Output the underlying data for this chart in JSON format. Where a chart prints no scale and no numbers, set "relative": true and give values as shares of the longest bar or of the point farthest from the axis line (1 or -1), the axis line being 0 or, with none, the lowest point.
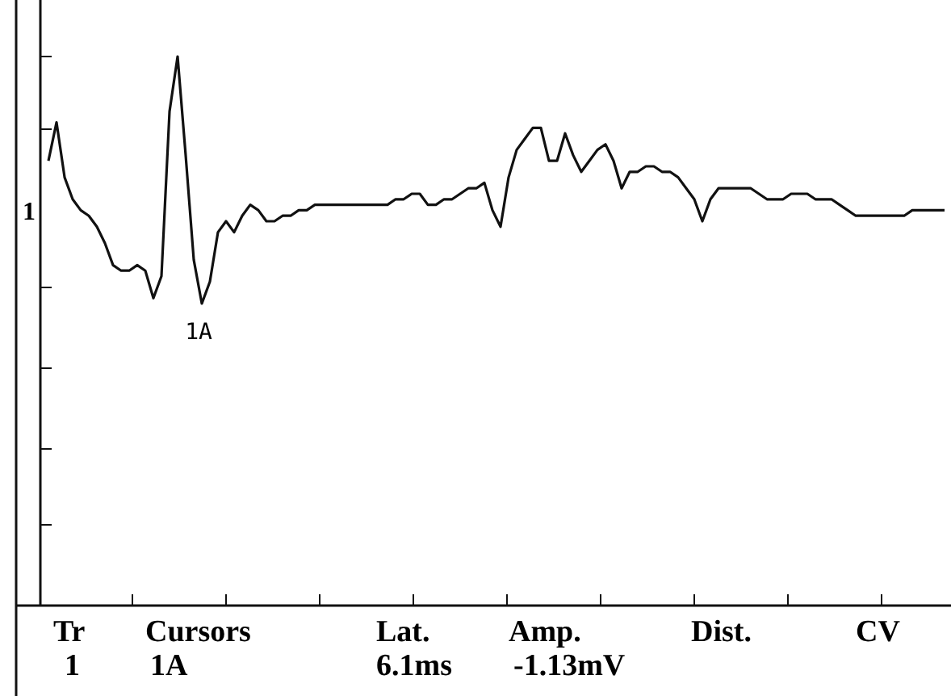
{
  "chart_data": {
    "type": "line",
    "relative": true,
    "color": "#111111",
    "categories": [
      null,
      null,
      null,
      null,
      null,
      null,
      null,
      null,
      null,
      null,
      null,
      null,
      null,
      null,
      null,
      null,
      null,
      null,
      null,
      null,
      null,
      null,
      null,
      null,
      null,
      null,
      null,
      null,
      null,
      null,
      null,
      null,
      null,
      null,
      null,
      null,
      null,
      null,
      null,
      null,
      null,
      null,
      null,
      null,
      null,
      null,
      null,
      null,
      null,
      null,
      null,
      null,
      null,
      null,
      null,
      null,
      null,
      null,
      null,
      null,
      null,
      null,
      null,
      null,
      null,
      null,
      null,
      null,
      null,
      null,
      null,
      null,
      null,
      null,
      null,
      null,
      null,
      null,
      null,
      null,
      null,
      null,
      null,
      null,
      null,
      null,
      null,
      null,
      null,
      null,
      null,
      null,
      null,
      null,
      null,
      null,
      null,
      null,
      null,
      null,
      null,
      null,
      null,
      null,
      null,
      null,
      null,
      null,
      null,
      null,
      null,
      null
    ],
    "values": [
      0.81,
      0.88,
      0.78,
      0.74,
      0.72,
      0.71,
      0.69,
      0.66,
      0.62,
      0.61,
      0.61,
      0.62,
      0.61,
      0.56,
      0.6,
      0.9,
      1.0,
      0.82,
      0.63,
      0.55,
      0.59,
      0.68,
      0.7,
      0.68,
      0.71,
      0.73,
      0.72,
      0.7,
      0.7,
      0.71,
      0.71,
      0.72,
      0.72,
      0.73,
      0.73,
      0.73,
      0.73,
      0.73,
      0.73,
      0.73,
      0.73,
      0.73,
      0.73,
      0.74,
      0.74,
      0.75,
      0.75,
      0.73,
      0.73,
      0.74,
      0.74,
      0.75,
      0.76,
      0.76,
      0.77,
      0.72,
      0.69,
      0.78,
      0.83,
      0.85,
      0.87,
      0.87,
      0.81,
      0.81,
      0.86,
      0.82,
      0.79,
      0.81,
      0.83,
      0.84,
      0.81,
      0.76,
      0.79,
      0.79,
      0.8,
      0.8,
      0.79,
      0.79,
      0.78,
      0.76,
      0.74,
      0.7,
      0.74,
      0.76,
      0.76,
      0.76,
      0.76,
      0.76,
      0.75,
      0.74,
      0.74,
      0.74,
      0.75,
      0.75,
      0.75,
      0.74,
      0.74,
      0.74,
      0.73,
      0.72,
      0.71,
      0.71,
      0.71,
      0.71,
      0.71,
      0.71,
      0.71,
      0.72,
      0.72,
      0.72,
      0.72,
      0.72
    ],
    "annotations": [
      "1",
      "1A",
      "Tr",
      "Cursors",
      "Lat.",
      "Amp.",
      "Dist.",
      "CV",
      "1",
      "1A",
      "6.1ms",
      "-1.13mV"
    ]
  }
}
